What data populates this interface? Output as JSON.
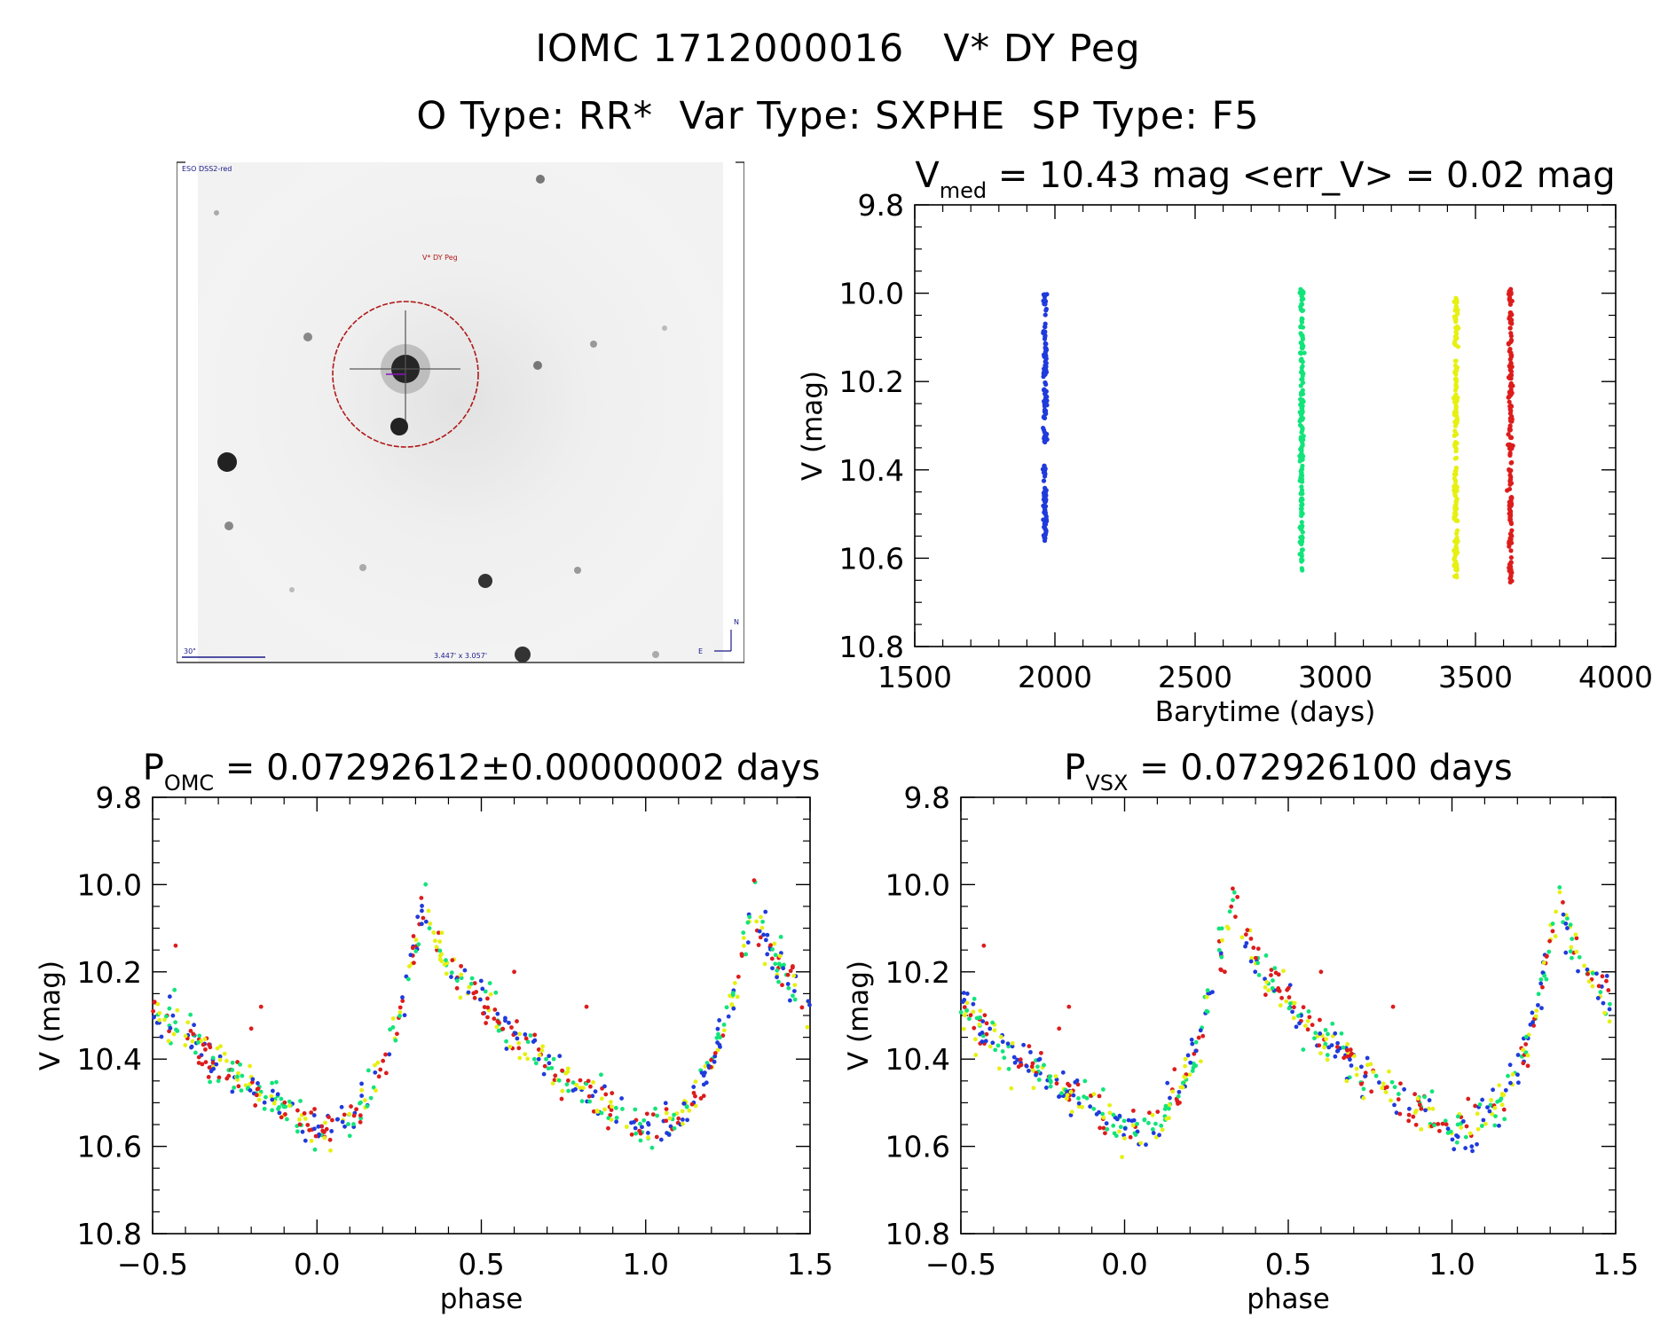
{
  "header": {
    "line1": "IOMC 1712000016   V* DY Peg",
    "line2": "O Type: RR*  Var Type: SXPHE  SP Type: F5"
  },
  "finder_chart": {
    "survey_label": "ESO DSS2-red",
    "target_label": "V* DY Peg",
    "scale_label": "30\"",
    "fov_label": "3.447' x 3.057'",
    "north_label": "N",
    "east_label": "E"
  },
  "chart_data": [
    {
      "id": "lightcurve",
      "type": "scatter",
      "title": {
        "main": "V",
        "sub": "med",
        "rest": " = 10.43 mag <err_V> = 0.02 mag"
      },
      "xlabel": "Barytime (days)",
      "ylabel": "V (mag)",
      "xlim": [
        1500,
        4000
      ],
      "ylim": [
        10.8,
        9.8
      ],
      "y_inverted": true,
      "xticks": [
        "1500",
        "2000",
        "2500",
        "3000",
        "3500",
        "4000"
      ],
      "yticks": [
        "9.8",
        "10.0",
        "10.2",
        "10.4",
        "10.6",
        "10.8"
      ],
      "series": [
        {
          "color": "#1f3bdc",
          "x": 1965,
          "y_range": [
            10.0,
            10.57
          ],
          "gap": [
            10.34,
            10.39
          ]
        },
        {
          "color": "#12e47a",
          "x": 2880,
          "y_range": [
            9.99,
            10.63
          ]
        },
        {
          "color": "#e6f012",
          "x": 3430,
          "y_range": [
            10.01,
            10.65
          ]
        },
        {
          "color": "#dd1c1c",
          "x": 3625,
          "y_range": [
            9.99,
            10.66
          ]
        }
      ]
    },
    {
      "id": "phase_omc",
      "type": "scatter",
      "title": {
        "main": "P",
        "sub": "OMC",
        "rest": " = 0.07292612±0.00000002 days"
      },
      "xlabel": "phase",
      "ylabel": "V (mag)",
      "xlim": [
        -0.5,
        1.5
      ],
      "ylim": [
        10.8,
        9.8
      ],
      "y_inverted": true,
      "xticks": [
        "−0.5",
        "0.0",
        "0.5",
        "1.0",
        "1.5"
      ],
      "yticks": [
        "9.8",
        "10.0",
        "10.2",
        "10.4",
        "10.6",
        "10.8"
      ],
      "curve": {
        "min_phase": 0.0,
        "min_mag": 10.56,
        "max_phase": 0.33,
        "max_mag": 10.02,
        "scatter_mag": 0.025
      },
      "series_colors": [
        "#1f3bdc",
        "#12e47a",
        "#e6f012",
        "#dd1c1c"
      ]
    },
    {
      "id": "phase_vsx",
      "type": "scatter",
      "title": {
        "main": "P",
        "sub": "VSX",
        "rest": " = 0.072926100 days"
      },
      "xlabel": "phase",
      "ylabel": "V (mag)",
      "xlim": [
        -0.5,
        1.5
      ],
      "ylim": [
        10.8,
        9.8
      ],
      "y_inverted": true,
      "xticks": [
        "−0.5",
        "0.0",
        "0.5",
        "1.0",
        "1.5"
      ],
      "yticks": [
        "9.8",
        "10.0",
        "10.2",
        "10.4",
        "10.6",
        "10.8"
      ],
      "curve": {
        "min_phase": 0.0,
        "min_mag": 10.56,
        "max_phase": 0.33,
        "max_mag": 10.02,
        "scatter_mag": 0.025
      },
      "series_colors": [
        "#1f3bdc",
        "#12e47a",
        "#e6f012",
        "#dd1c1c"
      ]
    }
  ]
}
